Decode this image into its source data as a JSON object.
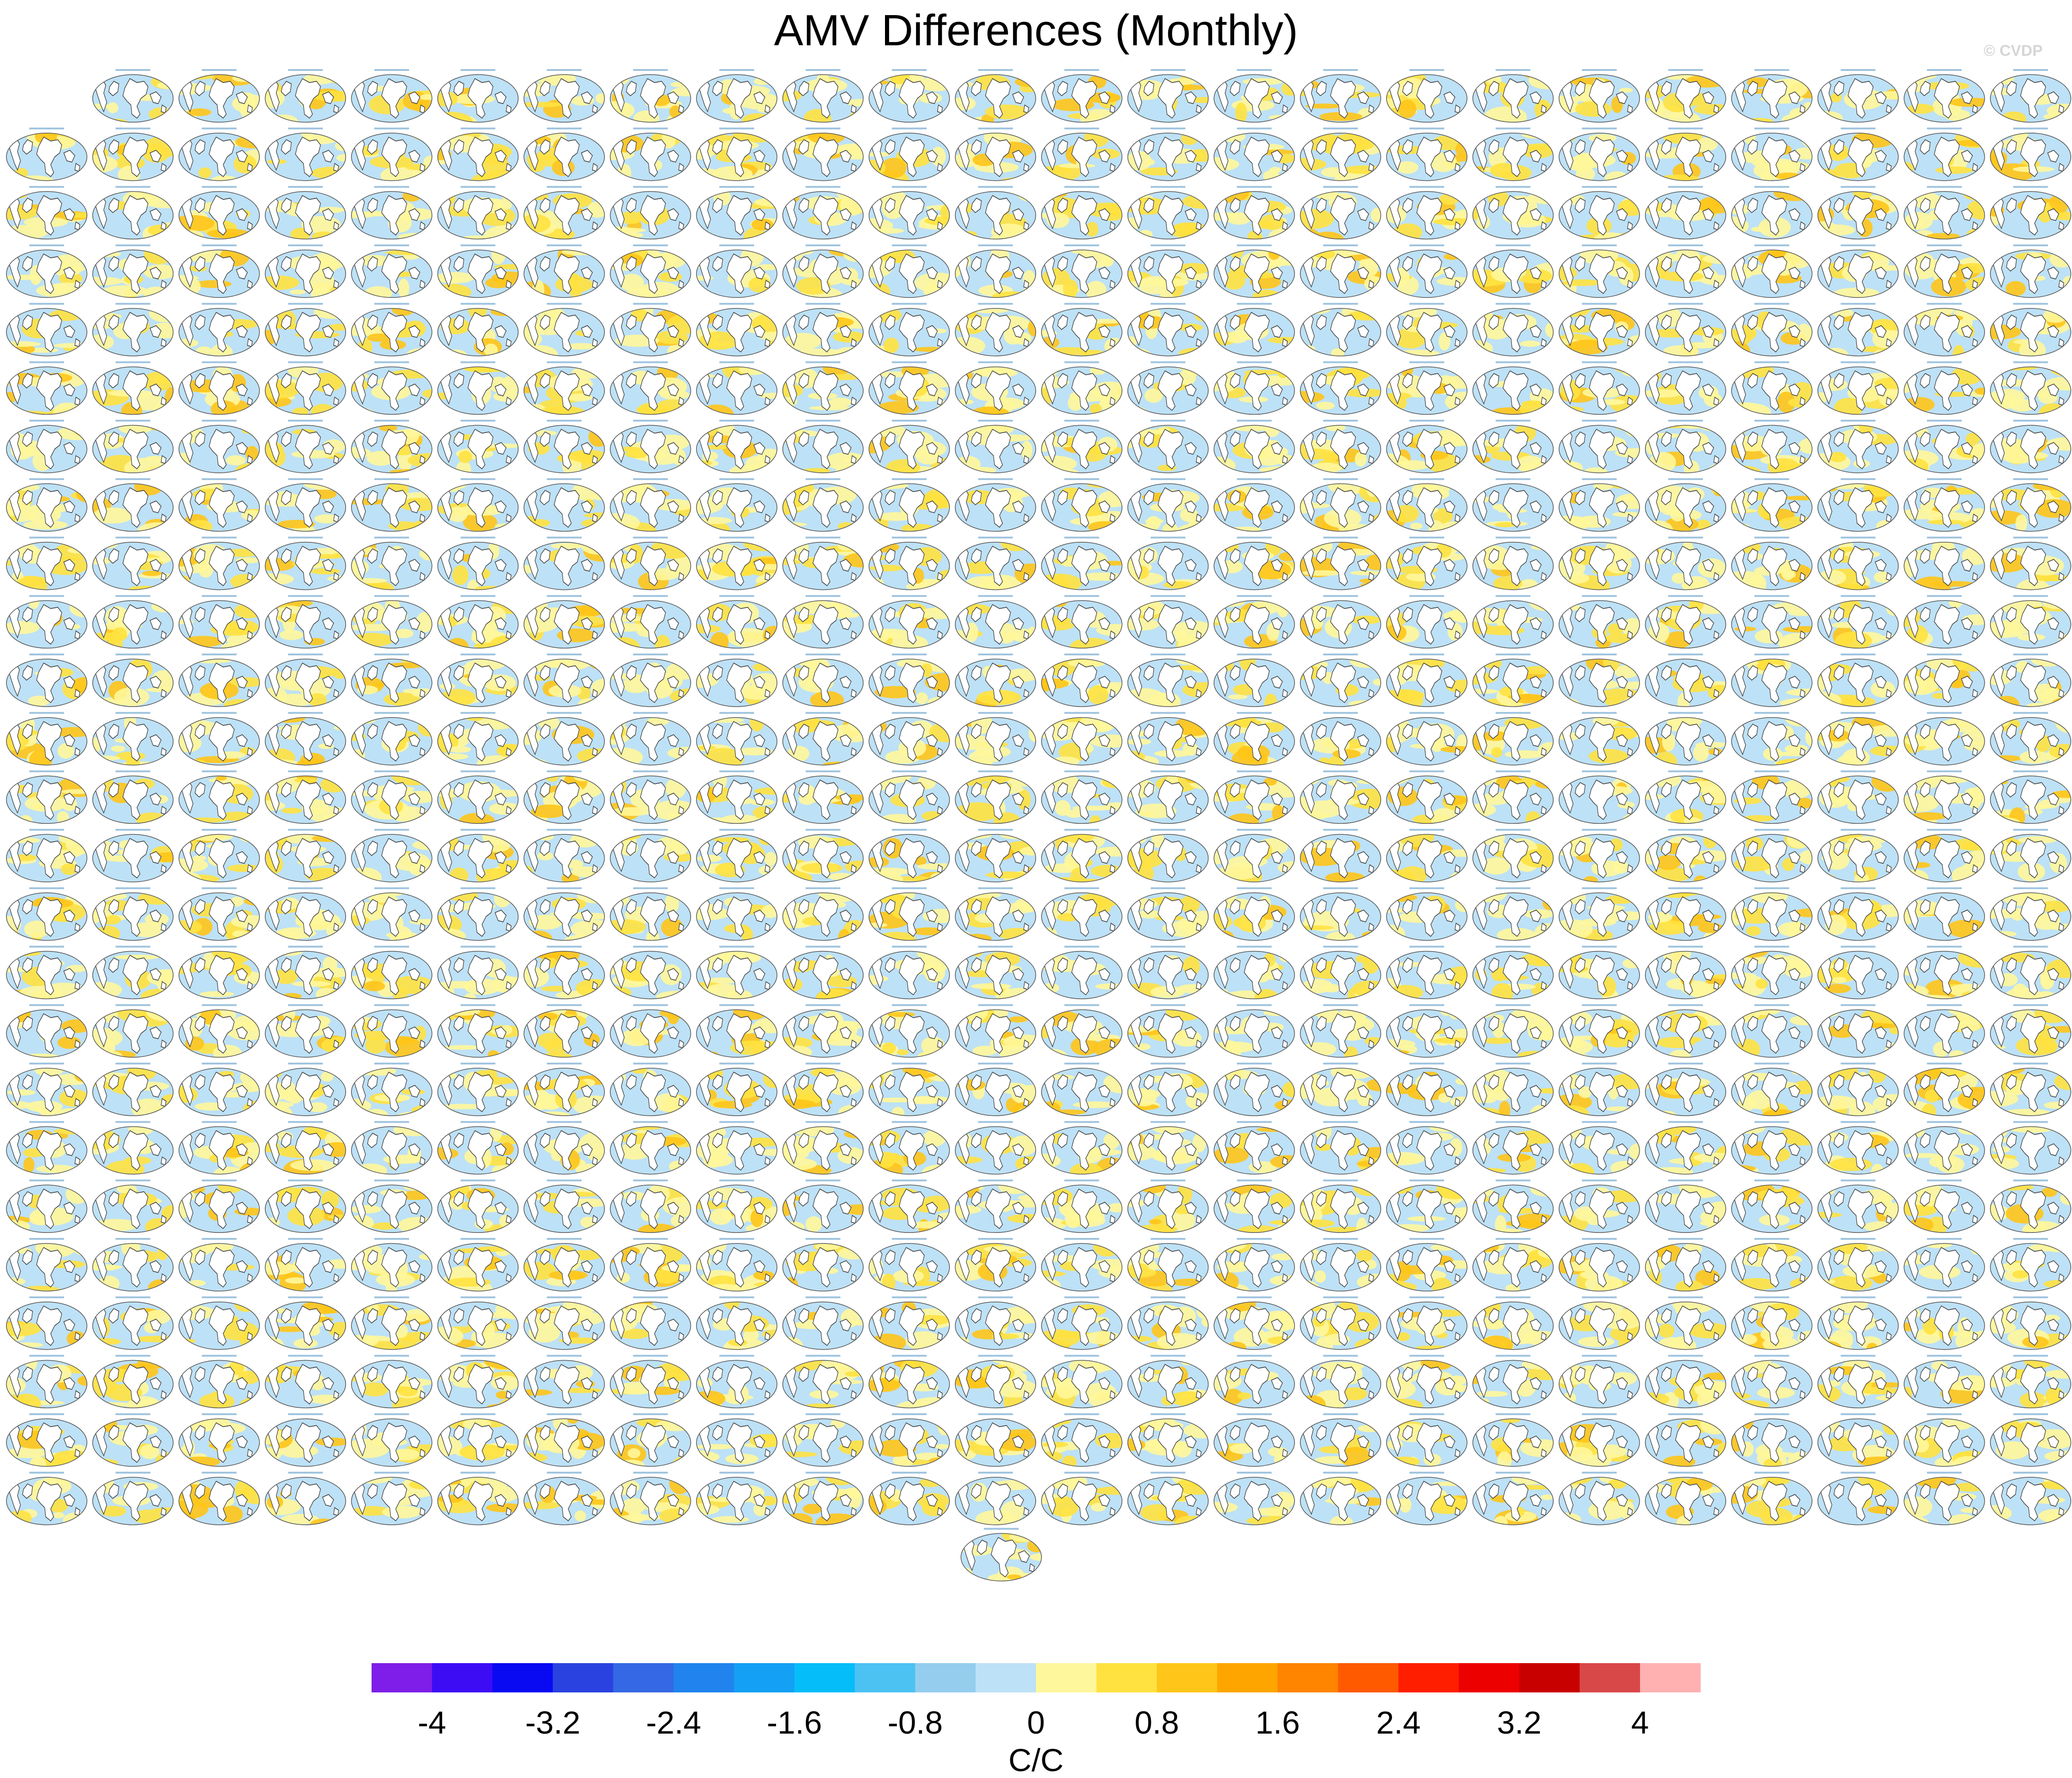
{
  "header": {
    "title": "AMV Differences (Monthly)",
    "copyright": "© CVDP"
  },
  "chart_data": {
    "type": "heatmap",
    "title": "AMV Differences (Monthly)",
    "grid": {
      "rows": 25,
      "columns": 24,
      "first_row_columns": 23,
      "trailing_centered_panels": 1
    },
    "colorbar": {
      "units": "C/C",
      "range": [
        -4.4,
        4.4
      ],
      "levels": [
        -4,
        -3.6,
        -3.2,
        -2.8,
        -2.4,
        -2,
        -1.6,
        -1.2,
        -0.8,
        -0.4,
        0,
        0.4,
        0.8,
        1.2,
        1.6,
        2,
        2.4,
        2.8,
        3.2,
        3.6,
        4
      ],
      "tick_labels": [
        "-4",
        "-3.2",
        "-2.4",
        "-1.6",
        "-0.8",
        "0",
        "0.8",
        "1.6",
        "2.4",
        "3.2",
        "4"
      ],
      "colors": [
        "#7e1ee8",
        "#3d0cf5",
        "#0a0af2",
        "#2a43e0",
        "#3468e4",
        "#2184ee",
        "#13a0f5",
        "#05bdf9",
        "#4cc2f3",
        "#95cdee",
        "#bde1f6",
        "#fff79b",
        "#ffe240",
        "#ffc518",
        "#ffa500",
        "#ff8400",
        "#ff5a00",
        "#ff1e00",
        "#ed0000",
        "#c80000",
        "#d94848",
        "#ffb1b1"
      ]
    }
  }
}
